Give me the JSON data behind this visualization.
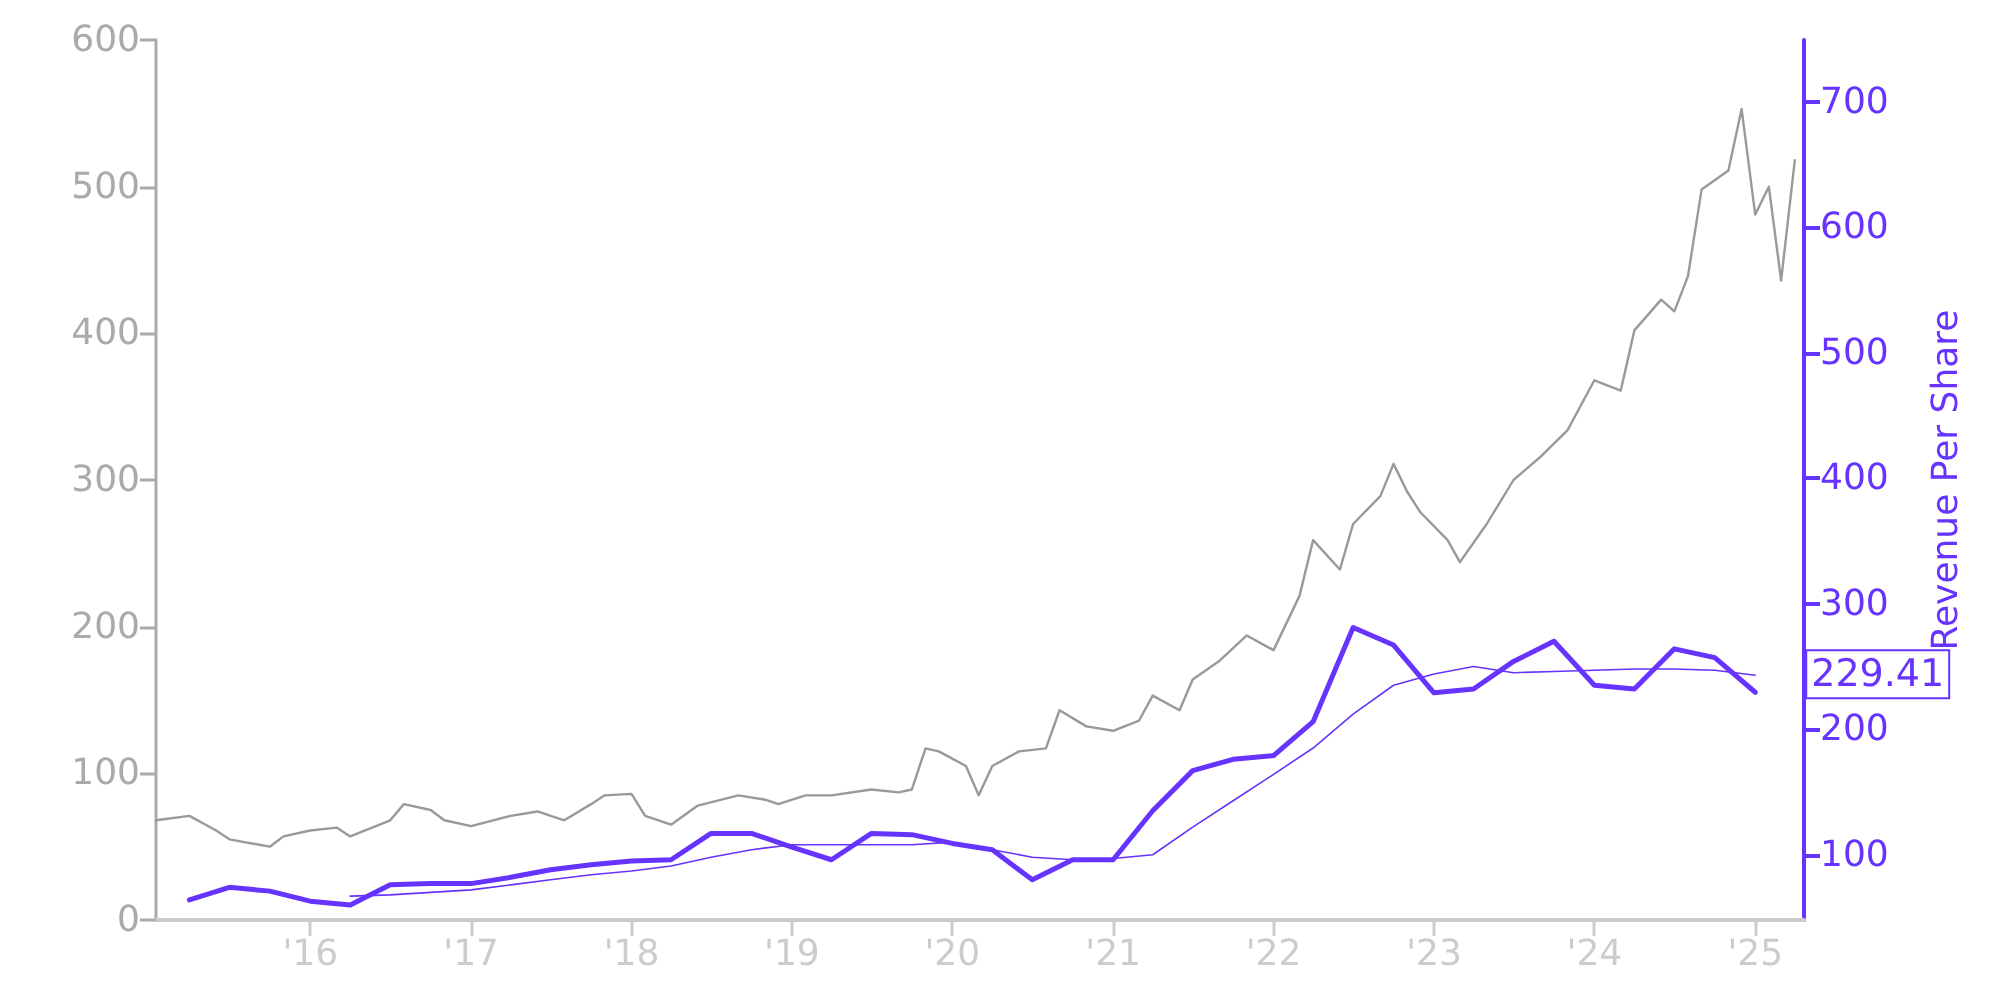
{
  "chart_data": {
    "type": "line",
    "y2label": "Revenue Per Share",
    "xlim": [
      "2015-01-15",
      "2025-04-22"
    ],
    "xticks": [
      {
        "value": "2016-01-01",
        "label": "'16"
      },
      {
        "value": "2017-01-01",
        "label": "'17"
      },
      {
        "value": "2018-01-01",
        "label": "'18"
      },
      {
        "value": "2019-01-01",
        "label": "'19"
      },
      {
        "value": "2020-01-01",
        "label": "'20"
      },
      {
        "value": "2021-01-01",
        "label": "'21"
      },
      {
        "value": "2022-01-01",
        "label": "'22"
      },
      {
        "value": "2023-01-01",
        "label": "'23"
      },
      {
        "value": "2024-01-01",
        "label": "'24"
      },
      {
        "value": "2025-01-01",
        "label": "'25"
      }
    ],
    "ylim": [
      0,
      600
    ],
    "yticks": [
      0,
      100,
      200,
      300,
      400,
      500,
      600
    ],
    "y2lim": [
      48,
      749
    ],
    "y2ticks": [
      100,
      200,
      300,
      400,
      500,
      600,
      700
    ],
    "grid": false,
    "series": [
      {
        "color": "#999999",
        "x": [
          "2015-01-15",
          "2015-04",
          "2015-06",
          "2015-07",
          "2015-10",
          "2015-11",
          "2016-01",
          "2016-03",
          "2016-04",
          "2016-07",
          "2016-08",
          "2016-10",
          "2016-11",
          "2017-01",
          "2017-04",
          "2017-06",
          "2017-08",
          "2017-10",
          "2017-11",
          "2018-01",
          "2018-02",
          "2018-04",
          "2018-06",
          "2018-09",
          "2018-11",
          "2018-12",
          "2019-02",
          "2019-04",
          "2019-07",
          "2019-09",
          "2019-10",
          "2019-11",
          "2019-12",
          "2020-02",
          "2020-03",
          "2020-04",
          "2020-06",
          "2020-08",
          "2020-09",
          "2020-11",
          "2021-01",
          "2021-03",
          "2021-04",
          "2021-06",
          "2021-07",
          "2021-09",
          "2021-11",
          "2022-01",
          "2022-03",
          "2022-04",
          "2022-06",
          "2022-07",
          "2022-09",
          "2022-10",
          "2022-11",
          "2022-12",
          "2023-02",
          "2023-03",
          "2023-05",
          "2023-07",
          "2023-09",
          "2023-11",
          "2024-01",
          "2024-03",
          "2024-04",
          "2024-06",
          "2024-07",
          "2024-08",
          "2024-09",
          "2024-11",
          "2024-12",
          "2025-01",
          "2025-02",
          "2025-03",
          "2025-04"
        ],
        "values": [
          68,
          71,
          61,
          55,
          50,
          57,
          61,
          63,
          57,
          68,
          79,
          75,
          68,
          64,
          71,
          74,
          68,
          79,
          85,
          86,
          71,
          65,
          78,
          85,
          82,
          79,
          85,
          85,
          89,
          87,
          89,
          117,
          115,
          105,
          85,
          105,
          115,
          117,
          143,
          132,
          129,
          136,
          153,
          143,
          164,
          177,
          194,
          184,
          221,
          259,
          239,
          270,
          289,
          311,
          292,
          278,
          259,
          244,
          270,
          300,
          316,
          334,
          368,
          361,
          402,
          423,
          415,
          439,
          498,
          511,
          553,
          481,
          500,
          436,
          518
        ]
      },
      {
        "color": "#6633ff",
        "axis": "y2",
        "x": [
          "2015-04",
          "2015-07",
          "2015-10",
          "2016-01",
          "2016-04",
          "2016-07",
          "2016-10",
          "2017-01",
          "2017-04",
          "2017-07",
          "2017-10",
          "2018-01",
          "2018-04",
          "2018-07",
          "2018-10",
          "2019-01",
          "2019-04",
          "2019-07",
          "2019-10",
          "2020-01",
          "2020-04",
          "2020-07",
          "2020-10",
          "2021-01",
          "2021-04",
          "2021-07",
          "2021-10",
          "2022-01",
          "2022-04",
          "2022-07",
          "2022-10",
          "2023-01",
          "2023-04",
          "2023-07",
          "2023-10",
          "2024-01",
          "2024-04",
          "2024-07",
          "2024-10",
          "2025-01"
        ],
        "values": [
          64,
          74,
          71,
          63,
          60,
          76,
          77,
          77,
          82,
          88,
          92,
          95,
          96,
          117,
          117,
          106,
          96,
          117,
          116,
          109,
          104,
          80,
          96,
          96,
          135,
          167,
          176,
          179,
          206,
          281,
          267,
          229,
          232,
          254,
          270,
          235,
          232,
          264,
          257,
          229.41
        ],
        "value_labels": [
          null,
          null,
          null,
          null,
          null,
          null,
          null,
          null,
          null,
          null,
          null,
          null,
          null,
          null,
          null,
          null,
          null,
          null,
          null,
          null,
          null,
          null,
          null,
          null,
          null,
          null,
          null,
          null,
          null,
          null,
          null,
          null,
          null,
          null,
          null,
          null,
          null,
          null,
          null,
          "229.41"
        ]
      },
      {
        "color": "#6633ff",
        "axis": "y2",
        "x": [
          "2016-04",
          "2016-07",
          "2016-10",
          "2017-01",
          "2017-04",
          "2017-07",
          "2017-10",
          "2018-01",
          "2018-04",
          "2018-07",
          "2018-10",
          "2019-01",
          "2019-04",
          "2019-07",
          "2019-10",
          "2020-01",
          "2020-04",
          "2020-07",
          "2020-10",
          "2021-01",
          "2021-04",
          "2021-07",
          "2021-10",
          "2022-01",
          "2022-04",
          "2022-07",
          "2022-10",
          "2023-01",
          "2023-04",
          "2023-07",
          "2023-10",
          "2024-01",
          "2024-04",
          "2024-07",
          "2024-10",
          "2025-01"
        ],
        "values": [
          67,
          68,
          70,
          72,
          76,
          80,
          84,
          87,
          91,
          98,
          104,
          108,
          108,
          108,
          108,
          110,
          104,
          98,
          96,
          97,
          100,
          122,
          143,
          164,
          185,
          212,
          235,
          244,
          250,
          245,
          246,
          247,
          248,
          248,
          247,
          243
        ]
      }
    ]
  }
}
